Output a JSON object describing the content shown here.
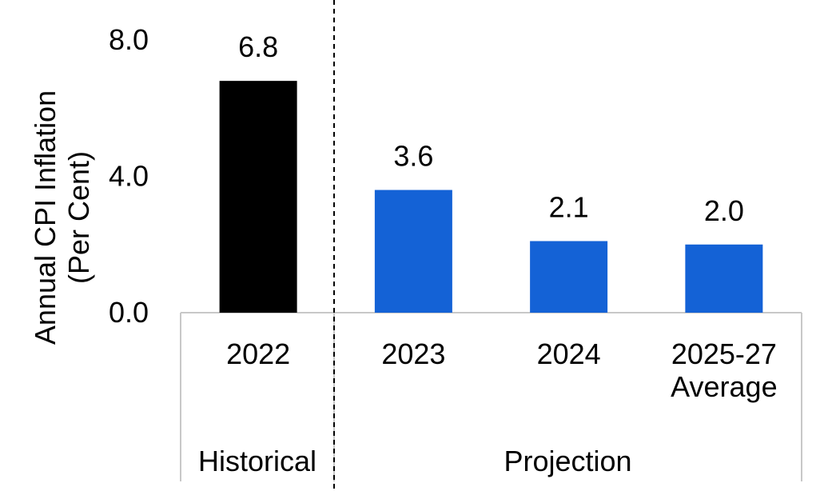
{
  "chart_data": {
    "type": "bar",
    "title": "",
    "ylabel": [
      "Annual CPI Inflation",
      "(Per Cent)"
    ],
    "xlabel": "",
    "ylim": [
      0,
      8
    ],
    "yticks": [
      "0.0",
      "4.0",
      "8.0"
    ],
    "categories": [
      {
        "label_lines": [
          "2022"
        ],
        "value": 6.8,
        "data_label": "6.8",
        "group": "Historical"
      },
      {
        "label_lines": [
          "2023"
        ],
        "value": 3.6,
        "data_label": "3.6",
        "group": "Projection"
      },
      {
        "label_lines": [
          "2024"
        ],
        "value": 2.1,
        "data_label": "2.1",
        "group": "Projection"
      },
      {
        "label_lines": [
          "2025-27",
          "Average"
        ],
        "value": 2.0,
        "data_label": "2.0",
        "group": "Projection"
      }
    ],
    "groups": [
      {
        "name": "Historical",
        "color": "#000000"
      },
      {
        "name": "Projection",
        "color": "#1462d6"
      }
    ],
    "grid": false,
    "legend": "none"
  }
}
